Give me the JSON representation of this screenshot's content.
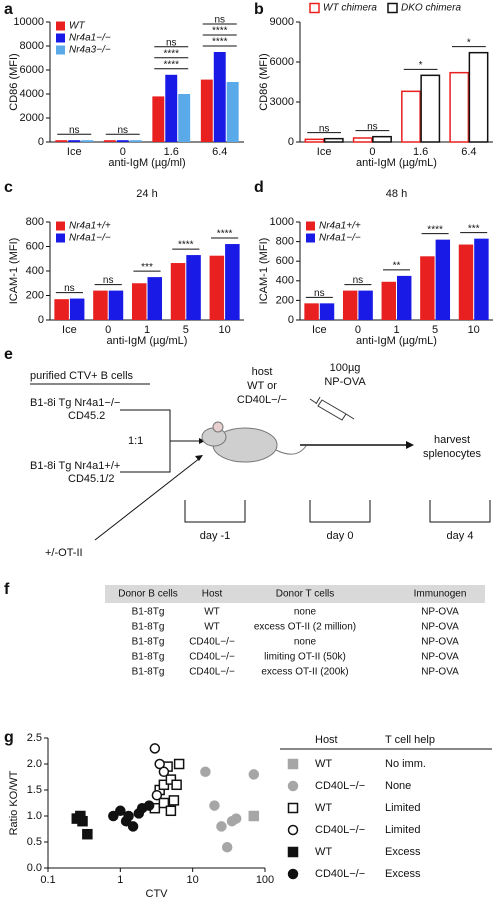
{
  "chart_data": [
    {
      "type": "bar",
      "panel": "a",
      "ylabel": "CD86 (MFI)",
      "xlabel": "anti-IgM (µg/ml)",
      "categories": [
        "Ice",
        "0",
        "1.6",
        "6.4"
      ],
      "series": [
        {
          "name": "WT",
          "color": "#e8201f",
          "values": [
            150,
            150,
            3800,
            5200
          ]
        },
        {
          "name": "Nr4a1−/−",
          "color": "#1a1ae6",
          "values": [
            150,
            150,
            5600,
            7500
          ]
        },
        {
          "name": "Nr4a3−/−",
          "color": "#5aa9e8",
          "values": [
            150,
            150,
            4000,
            5000
          ]
        }
      ],
      "ylim": [
        0,
        10000
      ],
      "yticks": [
        0,
        2000,
        4000,
        6000,
        8000,
        10000
      ],
      "annotations": [
        {
          "category": "Ice",
          "label": "ns"
        },
        {
          "category": "0",
          "label": "ns"
        },
        {
          "category": "1.6",
          "label": "****"
        },
        {
          "category": "1.6",
          "label": "****"
        },
        {
          "category": "1.6",
          "label": "ns"
        },
        {
          "category": "6.4",
          "label": "****"
        },
        {
          "category": "6.4",
          "label": "****"
        },
        {
          "category": "6.4",
          "label": "ns"
        }
      ]
    },
    {
      "type": "bar",
      "panel": "b",
      "ylabel": "CD86 (MFI)",
      "xlabel": "anti-IgM (µg/mL)",
      "hollow": true,
      "categories": [
        "Ice",
        "0",
        "1.6",
        "6.4"
      ],
      "series": [
        {
          "name": "WT chimera",
          "color": "#e8201f",
          "values": [
            200,
            300,
            3800,
            5200
          ]
        },
        {
          "name": "DKO chimera",
          "color": "#111111",
          "values": [
            250,
            400,
            5000,
            6700
          ]
        }
      ],
      "ylim": [
        0,
        9000
      ],
      "yticks": [
        0,
        3000,
        6000,
        9000
      ],
      "annotations": [
        {
          "category": "Ice",
          "label": "ns"
        },
        {
          "category": "0",
          "label": "ns"
        },
        {
          "category": "1.6",
          "label": "*"
        },
        {
          "category": "6.4",
          "label": "*"
        }
      ]
    },
    {
      "type": "bar",
      "panel": "c",
      "title": "24 h",
      "ylabel": "ICAM-1 (MFI)",
      "xlabel": "anti-IgM (µg/mL)",
      "categories": [
        "Ice",
        "0",
        "1",
        "5",
        "10"
      ],
      "series": [
        {
          "name": "Nr4a1+/+",
          "color": "#e8201f",
          "values": [
            170,
            240,
            300,
            465,
            525
          ]
        },
        {
          "name": "Nr4a1−/−",
          "color": "#1a1ae6",
          "values": [
            175,
            240,
            350,
            530,
            620
          ]
        }
      ],
      "ylim": [
        0,
        800
      ],
      "yticks": [
        0,
        200,
        400,
        600,
        800
      ],
      "annotations": [
        {
          "category": "Ice",
          "label": "ns"
        },
        {
          "category": "0",
          "label": "ns"
        },
        {
          "category": "1",
          "label": "***"
        },
        {
          "category": "5",
          "label": "****"
        },
        {
          "category": "10",
          "label": "****"
        }
      ]
    },
    {
      "type": "bar",
      "panel": "d",
      "title": "48 h",
      "ylabel": "ICAM-1 (MFI)",
      "xlabel": "anti-IgM (µg/mL)",
      "categories": [
        "Ice",
        "0",
        "1",
        "5",
        "10"
      ],
      "series": [
        {
          "name": "Nr4a1+/+",
          "color": "#e8201f",
          "values": [
            170,
            300,
            390,
            650,
            770
          ]
        },
        {
          "name": "Nr4a1−/−",
          "color": "#1a1ae6",
          "values": [
            170,
            300,
            450,
            820,
            830
          ]
        }
      ],
      "ylim": [
        0,
        1000
      ],
      "yticks": [
        0,
        200,
        400,
        600,
        800,
        1000
      ],
      "annotations": [
        {
          "category": "Ice",
          "label": "ns"
        },
        {
          "category": "0",
          "label": "ns"
        },
        {
          "category": "1",
          "label": "**"
        },
        {
          "category": "5",
          "label": "****"
        },
        {
          "category": "10",
          "label": "***"
        }
      ]
    },
    {
      "type": "scatter",
      "panel": "g",
      "xlabel": "CTV",
      "ylabel": "Ratio KO/WT",
      "xscale": "log",
      "xlim": [
        0.1,
        100
      ],
      "xticks": [
        0.1,
        1,
        10,
        100
      ],
      "ylim": [
        0,
        2.5
      ],
      "yticks": [
        {
          "value": 0,
          "label": "0.0"
        },
        {
          "value": 0.5,
          "label": "0.5"
        },
        {
          "value": 1,
          "label": "1.0"
        },
        {
          "value": 1.5,
          "label": "1.5"
        },
        {
          "value": 2,
          "label": "2.0"
        },
        {
          "value": 2.5,
          "label": "2.5"
        }
      ],
      "legend_headers": [
        "Host",
        "T cell help"
      ],
      "series": [
        {
          "host": "WT",
          "help": "No imm.",
          "marker": "square",
          "filled": true,
          "color": "#a6a6a6",
          "x": [
            70
          ],
          "y": [
            1.0
          ]
        },
        {
          "host": "CD40L−/−",
          "help": "None",
          "marker": "circle",
          "filled": true,
          "color": "#a6a6a6",
          "x": [
            15,
            20,
            25,
            30,
            35,
            40,
            70
          ],
          "y": [
            1.85,
            1.2,
            0.8,
            0.4,
            0.9,
            0.95,
            1.8
          ]
        },
        {
          "host": "WT",
          "help": "Limited",
          "marker": "square",
          "filled": false,
          "color": "#111111",
          "x": [
            3,
            3.5,
            4,
            4.5,
            5,
            5.5,
            6,
            6.5,
            4,
            5
          ],
          "y": [
            1.15,
            1.5,
            1.6,
            1.95,
            1.7,
            1.3,
            1.6,
            2.0,
            1.25,
            1.1
          ]
        },
        {
          "host": "CD40L−/−",
          "help": "Limited",
          "marker": "circle",
          "filled": false,
          "color": "#111111",
          "x": [
            3,
            3.5,
            4,
            3.2
          ],
          "y": [
            2.3,
            2.0,
            1.85,
            1.4
          ]
        },
        {
          "host": "WT",
          "help": "Excess",
          "marker": "square",
          "filled": true,
          "color": "#111111",
          "x": [
            0.25,
            0.3,
            0.35,
            0.28
          ],
          "y": [
            0.95,
            0.9,
            0.65,
            1.0
          ]
        },
        {
          "host": "CD40L−/−",
          "help": "Excess",
          "marker": "circle",
          "filled": true,
          "color": "#111111",
          "x": [
            0.8,
            1,
            1.2,
            1.5,
            1.8,
            2,
            2.5,
            1.3
          ],
          "y": [
            1.0,
            1.1,
            0.9,
            0.8,
            1.05,
            1.15,
            1.2,
            1.0
          ]
        }
      ]
    }
  ],
  "diagram": {
    "panel": "e",
    "header": "purified CTV+ B cells",
    "donor1": [
      "B1-8i Tg Nr4a1−/−",
      "CD45.2"
    ],
    "ratio": "1:1",
    "donor2": [
      "B1-8i Tg Nr4a1+/+",
      "CD45.1/2"
    ],
    "tcells": "+/-OT-II",
    "host": [
      "host",
      "WT or",
      "CD40L−/−"
    ],
    "immunization": [
      "100µg",
      "NP-OVA"
    ],
    "harvest": [
      "harvest",
      "splenocytes"
    ],
    "days": [
      "day -1",
      "day 0",
      "day 4"
    ]
  },
  "table": {
    "panel": "f",
    "header": [
      "Donor B cells",
      "Host",
      "Donor T cells",
      "Immunogen"
    ],
    "rows": [
      [
        "B1-8Tg",
        "WT",
        "none",
        "NP-OVA"
      ],
      [
        "B1-8Tg",
        "WT",
        "excess OT-II (2 million)",
        "NP-OVA"
      ],
      [
        "B1-8Tg",
        "CD40L−/−",
        "none",
        "NP-OVA"
      ],
      [
        "B1-8Tg",
        "CD40L−/−",
        "limiting OT-II (50k)",
        "NP-OVA"
      ],
      [
        "B1-8Tg",
        "CD40L−/−",
        "excess OT-II (200k)",
        "NP-OVA"
      ]
    ]
  }
}
